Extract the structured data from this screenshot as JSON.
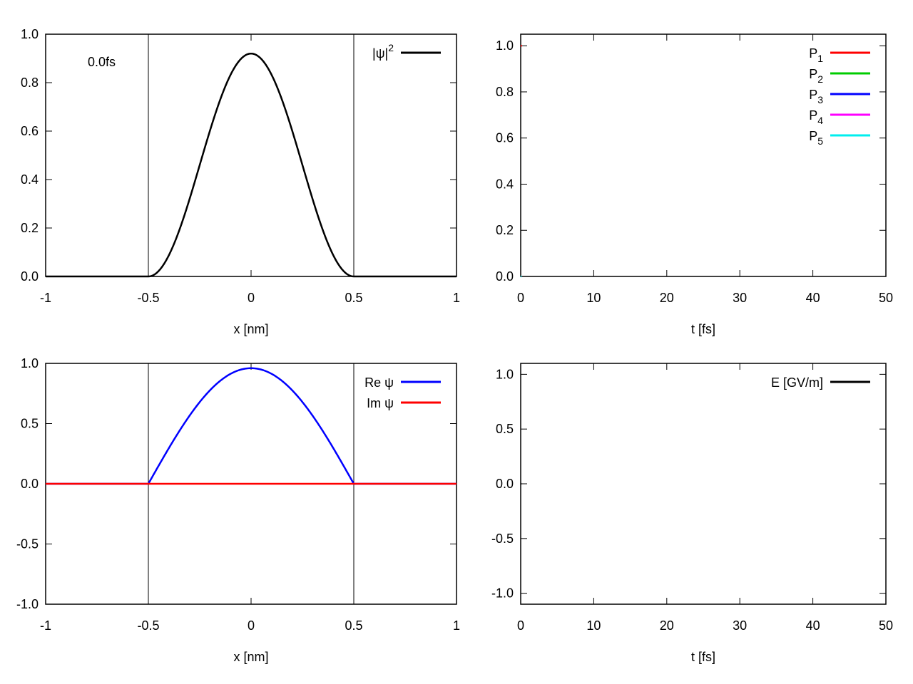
{
  "chart_data": [
    {
      "type": "line",
      "annotation": "0.0fs",
      "xlabel": "x [nm]",
      "ylabel": "",
      "xlim": [
        -1,
        1
      ],
      "ylim": [
        0,
        1
      ],
      "xticks": [
        "-1",
        "-0.5",
        "0",
        "0.5",
        "1"
      ],
      "yticks": [
        "0.0",
        "0.2",
        "0.4",
        "0.6",
        "0.8",
        "1.0"
      ],
      "vlines": [
        -0.5,
        0.5
      ],
      "legend_position": "top-right",
      "series": [
        {
          "label_main": "|ψ|",
          "label_sup": "2",
          "color": "#000000",
          "function": "0.92*cos^2(pi*x) on [-0.5,0.5], 0 elsewhere",
          "x": [
            -1,
            -0.5,
            -0.4,
            -0.3,
            -0.2,
            -0.1,
            0,
            0.1,
            0.2,
            0.3,
            0.4,
            0.5,
            1
          ],
          "y": [
            0,
            0,
            0.088,
            0.318,
            0.602,
            0.832,
            0.92,
            0.832,
            0.602,
            0.318,
            0.088,
            0,
            0
          ]
        }
      ]
    },
    {
      "type": "line",
      "xlabel": "t [fs]",
      "ylabel": "",
      "xlim": [
        0,
        50
      ],
      "ylim": [
        0,
        1.05
      ],
      "xticks": [
        "0",
        "10",
        "20",
        "30",
        "40",
        "50"
      ],
      "yticks": [
        "0.0",
        "0.2",
        "0.4",
        "0.6",
        "0.8",
        "1.0"
      ],
      "legend_position": "top-right",
      "series": [
        {
          "label_main": "P",
          "label_sub": "1",
          "color": "#ff0000",
          "x": [
            0,
            0.15
          ],
          "y": [
            1.0,
            1.0
          ]
        },
        {
          "label_main": "P",
          "label_sub": "2",
          "color": "#00cc00",
          "x": [
            0
          ],
          "y": [
            0
          ]
        },
        {
          "label_main": "P",
          "label_sub": "3",
          "color": "#0000ff",
          "x": [
            0
          ],
          "y": [
            0
          ]
        },
        {
          "label_main": "P",
          "label_sub": "4",
          "color": "#ff00ff",
          "x": [
            0
          ],
          "y": [
            0
          ]
        },
        {
          "label_main": "P",
          "label_sub": "5",
          "color": "#00eeee",
          "x": [
            0,
            0.1
          ],
          "y": [
            0,
            0
          ]
        }
      ]
    },
    {
      "type": "line",
      "xlabel": "x [nm]",
      "ylabel": "",
      "xlim": [
        -1,
        1
      ],
      "ylim": [
        -1,
        1
      ],
      "xticks": [
        "-1",
        "-0.5",
        "0",
        "0.5",
        "1"
      ],
      "yticks": [
        "-1.0",
        "-0.5",
        "0.0",
        "0.5",
        "1.0"
      ],
      "vlines": [
        -0.5,
        0.5
      ],
      "legend_position": "top-right",
      "series": [
        {
          "label_main": "Re ψ",
          "color": "#0000ff",
          "function": "0.96*cos(pi*x) on [-0.5,0.5], 0 elsewhere",
          "x": [
            -1,
            -0.5,
            -0.4,
            -0.3,
            -0.2,
            -0.1,
            0,
            0.1,
            0.2,
            0.3,
            0.4,
            0.5,
            1
          ],
          "y": [
            0,
            0,
            0.297,
            0.564,
            0.777,
            0.913,
            0.96,
            0.913,
            0.777,
            0.564,
            0.297,
            0,
            0
          ]
        },
        {
          "label_main": "Im ψ",
          "color": "#ff0000",
          "x": [
            -1,
            1
          ],
          "y": [
            0,
            0
          ]
        }
      ]
    },
    {
      "type": "line",
      "xlabel": "t [fs]",
      "ylabel": "",
      "xlim": [
        0,
        50
      ],
      "ylim": [
        -1.1,
        1.1
      ],
      "xticks": [
        "0",
        "10",
        "20",
        "30",
        "40",
        "50"
      ],
      "yticks": [
        "-1.0",
        "-0.5",
        "0.0",
        "0.5",
        "1.0"
      ],
      "legend_position": "top-right",
      "series": [
        {
          "label_main": "E [GV/m]",
          "color": "#000000",
          "x": [
            0,
            0.1
          ],
          "y": [
            0,
            0
          ]
        }
      ]
    }
  ]
}
